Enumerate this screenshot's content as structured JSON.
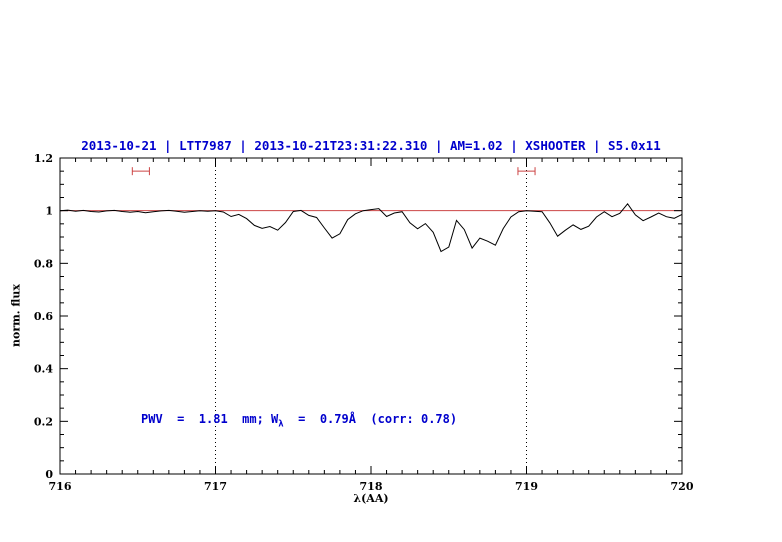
{
  "annotation": {
    "part1": "PWV  =  1.81  mm; W",
    "sub": "λ",
    "part2": "  =  0.79Å  (corr: 0.78)"
  },
  "chart_data": {
    "type": "line",
    "title": "2013-10-21 | LTT7987 | 2013-10-21T23:31:22.310 | AM=1.02 | XSHOOTER | S5.0x11",
    "xlabel": "λ(AA)",
    "ylabel": "norm. flux",
    "xlim": [
      716,
      720
    ],
    "ylim": [
      0,
      1.2
    ],
    "grid": false,
    "legend": "none",
    "colors": {
      "spectrum": "#000000",
      "continuum": "#cc4444",
      "axis": "#000000",
      "title": "#0000cd",
      "annotation": "#0000cd"
    },
    "x_ticks": {
      "values": [
        716,
        717,
        718,
        719,
        720
      ],
      "labels": [
        "716",
        "717",
        "718",
        "719",
        "720"
      ]
    },
    "y_ticks": {
      "values": [
        0,
        0.2,
        0.4,
        0.6,
        0.8,
        1,
        1.2
      ],
      "labels": [
        "0",
        "0.2",
        "0.4",
        "0.6",
        "0.8",
        "1",
        "1.2"
      ]
    },
    "vlines": [
      {
        "x": 717,
        "style": "dotted"
      },
      {
        "x": 719,
        "style": "dotted"
      }
    ],
    "markers": [
      {
        "x": 716.52,
        "y": 1.15,
        "half_width": 0.055
      },
      {
        "x": 719.0,
        "y": 1.15,
        "half_width": 0.055
      }
    ],
    "annotations": [
      {
        "text": "PWV = 1.81 mm; W_λ = 0.79Å (corr: 0.78)",
        "x": 716.52,
        "y": 0.2,
        "color": "#0000cd"
      }
    ],
    "series": [
      {
        "name": "spectrum",
        "color": "#000000",
        "x": [
          716.0,
          716.05,
          716.1,
          716.15,
          716.2,
          716.25,
          716.3,
          716.35,
          716.4,
          716.45,
          716.5,
          716.55,
          716.6,
          716.65,
          716.7,
          716.75,
          716.8,
          716.85,
          716.9,
          716.95,
          717.0,
          717.05,
          717.1,
          717.15,
          717.2,
          717.25,
          717.3,
          717.35,
          717.4,
          717.45,
          717.5,
          717.55,
          717.6,
          717.65,
          717.7,
          717.75,
          717.8,
          717.85,
          717.9,
          717.95,
          718.0,
          718.05,
          718.1,
          718.15,
          718.2,
          718.25,
          718.3,
          718.35,
          718.4,
          718.45,
          718.5,
          718.55,
          718.6,
          718.65,
          718.7,
          718.75,
          718.8,
          718.85,
          718.9,
          718.95,
          719.0,
          719.05,
          719.1,
          719.15,
          719.2,
          719.25,
          719.3,
          719.35,
          719.4,
          719.45,
          719.5,
          719.55,
          719.6,
          719.65,
          719.7,
          719.75,
          719.8,
          719.85,
          719.9,
          719.95,
          720.0
        ],
        "y": [
          1.0,
          1.002,
          0.998,
          1.001,
          0.997,
          0.995,
          0.999,
          1.001,
          0.997,
          0.994,
          0.997,
          0.992,
          0.996,
          0.999,
          1.001,
          0.998,
          0.994,
          0.997,
          1.0,
          0.998,
          1.0,
          0.995,
          0.978,
          0.986,
          0.97,
          0.944,
          0.933,
          0.94,
          0.926,
          0.955,
          0.997,
          1.001,
          0.982,
          0.974,
          0.934,
          0.896,
          0.912,
          0.966,
          0.988,
          1.0,
          1.004,
          1.008,
          0.978,
          0.991,
          0.996,
          0.954,
          0.931,
          0.951,
          0.918,
          0.845,
          0.862,
          0.963,
          0.928,
          0.858,
          0.896,
          0.884,
          0.869,
          0.932,
          0.976,
          0.996,
          1.0,
          0.998,
          0.996,
          0.954,
          0.903,
          0.926,
          0.946,
          0.929,
          0.941,
          0.976,
          0.996,
          0.977,
          0.99,
          1.026,
          0.984,
          0.962,
          0.976,
          0.991,
          0.977,
          0.971,
          0.986
        ]
      },
      {
        "name": "continuum",
        "color": "#cc4444",
        "x": [
          716,
          720
        ],
        "y": [
          1,
          1
        ]
      }
    ]
  }
}
